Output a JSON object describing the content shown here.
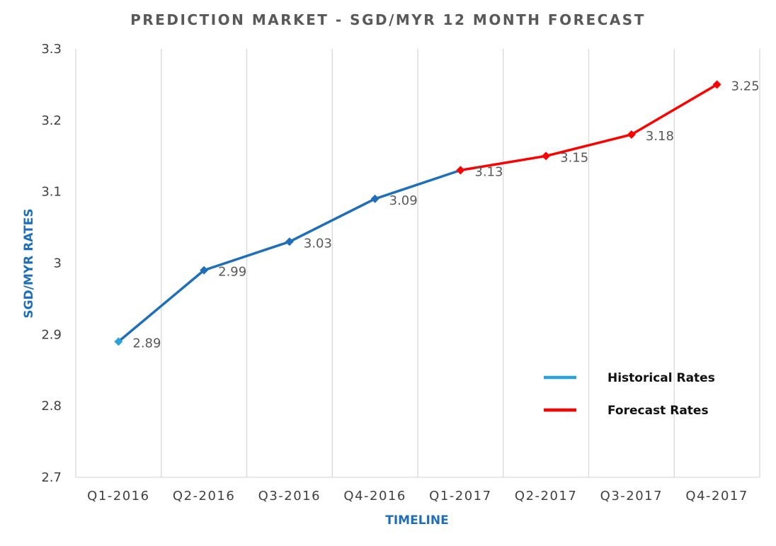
{
  "chart_data": {
    "type": "line",
    "title": "PREDICTION MARKET - SGD/MYR 12 MONTH FORECAST",
    "xlabel": "TIMELINE",
    "ylabel": "SGD/MYR RATES",
    "categories": [
      "Q1-2016",
      "Q2-2016",
      "Q3-2016",
      "Q4-2016",
      "Q1-2017",
      "Q2-2017",
      "Q3-2017",
      "Q4-2017"
    ],
    "y_ticks": [
      "2.7",
      "2.8",
      "2.9",
      "3",
      "3.1",
      "3.2",
      "3.3"
    ],
    "ylim": [
      2.7,
      3.3
    ],
    "grid": "vertical",
    "legend_position": "bottom-right",
    "series": [
      {
        "name": "Historical Rates",
        "color": "#1f6fb8",
        "legend_color": "#2aa3dd",
        "values": [
          2.89,
          2.99,
          3.03,
          3.09,
          3.13,
          null,
          null,
          null
        ],
        "labels": [
          "2.89",
          "2.99",
          "3.03",
          "3.09",
          "3.13",
          "",
          "",
          ""
        ]
      },
      {
        "name": "Forecast Rates",
        "color": "#ff0000",
        "legend_color": "#ff0000",
        "values": [
          null,
          null,
          null,
          null,
          3.13,
          3.15,
          3.18,
          3.25
        ],
        "labels": [
          "",
          "",
          "",
          "",
          "",
          "3.15",
          "3.18",
          "3.25"
        ]
      }
    ],
    "first_marker_color": "#2aa3dd",
    "axis_label_color": "#1f6fb8",
    "grid_color": "#d9d9d9"
  }
}
